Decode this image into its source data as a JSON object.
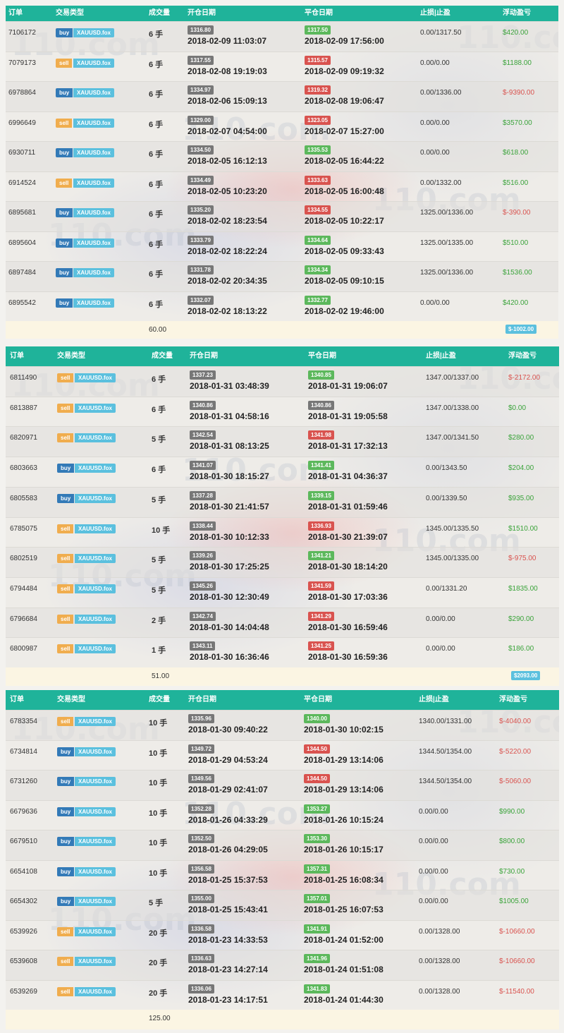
{
  "tables": [
    {
      "headers": {
        "order": "订单",
        "type": "交易类型",
        "volume": "成交量",
        "open": "开仓日期",
        "close": "平仓日期",
        "sltp": "止损|止盈",
        "pnl": "浮动盈亏"
      },
      "rows": [
        {
          "order": "7106172",
          "side": "buy",
          "symbol": "XAUUSD.fox",
          "lots": "6 手",
          "open_price": "1316.80",
          "open_time": "2018-02-09 11:03:07",
          "close_price": "1317.50",
          "close_color": "green",
          "close_time": "2018-02-09 17:56:00",
          "sltp": "0.00/1317.50",
          "pnl": "$420.00",
          "pnl_sign": "pos"
        },
        {
          "order": "7079173",
          "side": "sell",
          "symbol": "XAUUSD.fox",
          "lots": "6 手",
          "open_price": "1317.55",
          "open_time": "2018-02-08 19:19:03",
          "close_price": "1315.57",
          "close_color": "red",
          "close_time": "2018-02-09 09:19:32",
          "sltp": "0.00/0.00",
          "pnl": "$1188.00",
          "pnl_sign": "pos"
        },
        {
          "order": "6978864",
          "side": "buy",
          "symbol": "XAUUSD.fox",
          "lots": "6 手",
          "open_price": "1334.97",
          "open_time": "2018-02-06 15:09:13",
          "close_price": "1319.32",
          "close_color": "red",
          "close_time": "2018-02-08 19:06:47",
          "sltp": "0.00/1336.00",
          "pnl": "$-9390.00",
          "pnl_sign": "neg"
        },
        {
          "order": "6996649",
          "side": "sell",
          "symbol": "XAUUSD.fox",
          "lots": "6 手",
          "open_price": "1329.00",
          "open_time": "2018-02-07 04:54:00",
          "close_price": "1323.05",
          "close_color": "red",
          "close_time": "2018-02-07 15:27:00",
          "sltp": "0.00/0.00",
          "pnl": "$3570.00",
          "pnl_sign": "pos"
        },
        {
          "order": "6930711",
          "side": "buy",
          "symbol": "XAUUSD.fox",
          "lots": "6 手",
          "open_price": "1334.50",
          "open_time": "2018-02-05 16:12:13",
          "close_price": "1335.53",
          "close_color": "green",
          "close_time": "2018-02-05 16:44:22",
          "sltp": "0.00/0.00",
          "pnl": "$618.00",
          "pnl_sign": "pos"
        },
        {
          "order": "6914524",
          "side": "sell",
          "symbol": "XAUUSD.fox",
          "lots": "6 手",
          "open_price": "1334.49",
          "open_time": "2018-02-05 10:23:20",
          "close_price": "1333.63",
          "close_color": "red",
          "close_time": "2018-02-05 16:00:48",
          "sltp": "0.00/1332.00",
          "pnl": "$516.00",
          "pnl_sign": "pos"
        },
        {
          "order": "6895681",
          "side": "buy",
          "symbol": "XAUUSD.fox",
          "lots": "6 手",
          "open_price": "1335.20",
          "open_time": "2018-02-02 18:23:54",
          "close_price": "1334.55",
          "close_color": "red",
          "close_time": "2018-02-05 10:22:17",
          "sltp": "1325.00/1336.00",
          "pnl": "$-390.00",
          "pnl_sign": "neg"
        },
        {
          "order": "6895604",
          "side": "buy",
          "symbol": "XAUUSD.fox",
          "lots": "6 手",
          "open_price": "1333.79",
          "open_time": "2018-02-02 18:22:24",
          "close_price": "1334.64",
          "close_color": "green",
          "close_time": "2018-02-05 09:33:43",
          "sltp": "1325.00/1335.00",
          "pnl": "$510.00",
          "pnl_sign": "pos"
        },
        {
          "order": "6897484",
          "side": "buy",
          "symbol": "XAUUSD.fox",
          "lots": "6 手",
          "open_price": "1331.78",
          "open_time": "2018-02-02 20:34:35",
          "close_price": "1334.34",
          "close_color": "green",
          "close_time": "2018-02-05 09:10:15",
          "sltp": "1325.00/1336.00",
          "pnl": "$1536.00",
          "pnl_sign": "pos"
        },
        {
          "order": "6895542",
          "side": "buy",
          "symbol": "XAUUSD.fox",
          "lots": "6 手",
          "open_price": "1332.07",
          "open_time": "2018-02-02 18:13:22",
          "close_price": "1332.77",
          "close_color": "green",
          "close_time": "2018-02-02 19:46:00",
          "sltp": "0.00/0.00",
          "pnl": "$420.00",
          "pnl_sign": "pos"
        }
      ],
      "total_volume": "60.00",
      "total_pnl": "$-1002.00"
    },
    {
      "headers": {
        "order": "订单",
        "type": "交易类型",
        "volume": "成交量",
        "open": "开仓日期",
        "close": "平仓日期",
        "sltp": "止损|止盈",
        "pnl": "浮动盈亏"
      },
      "rows": [
        {
          "order": "6811490",
          "side": "sell",
          "symbol": "XAUUSD.fox",
          "lots": "6 手",
          "open_price": "1337.23",
          "open_time": "2018-01-31 03:48:39",
          "close_price": "1340.85",
          "close_color": "green",
          "close_time": "2018-01-31 19:06:07",
          "sltp": "1347.00/1337.00",
          "pnl": "$-2172.00",
          "pnl_sign": "neg"
        },
        {
          "order": "6813887",
          "side": "sell",
          "symbol": "XAUUSD.fox",
          "lots": "6 手",
          "open_price": "1340.86",
          "open_time": "2018-01-31 04:58:16",
          "close_price": "1340.86",
          "close_color": "grey",
          "close_time": "2018-01-31 19:05:58",
          "sltp": "1347.00/1338.00",
          "pnl": "$0.00",
          "pnl_sign": "pos"
        },
        {
          "order": "6820971",
          "side": "sell",
          "symbol": "XAUUSD.fox",
          "lots": "5 手",
          "open_price": "1342.54",
          "open_time": "2018-01-31 08:13:25",
          "close_price": "1341.98",
          "close_color": "red",
          "close_time": "2018-01-31 17:32:13",
          "sltp": "1347.00/1341.50",
          "pnl": "$280.00",
          "pnl_sign": "pos"
        },
        {
          "order": "6803663",
          "side": "buy",
          "symbol": "XAUUSD.fox",
          "lots": "6 手",
          "open_price": "1341.07",
          "open_time": "2018-01-30 18:15:27",
          "close_price": "1341.41",
          "close_color": "green",
          "close_time": "2018-01-31 04:36:37",
          "sltp": "0.00/1343.50",
          "pnl": "$204.00",
          "pnl_sign": "pos"
        },
        {
          "order": "6805583",
          "side": "buy",
          "symbol": "XAUUSD.fox",
          "lots": "5 手",
          "open_price": "1337.28",
          "open_time": "2018-01-30 21:41:57",
          "close_price": "1339.15",
          "close_color": "green",
          "close_time": "2018-01-31 01:59:46",
          "sltp": "0.00/1339.50",
          "pnl": "$935.00",
          "pnl_sign": "pos"
        },
        {
          "order": "6785075",
          "side": "sell",
          "symbol": "XAUUSD.fox",
          "lots": "10 手",
          "open_price": "1338.44",
          "open_time": "2018-01-30 10:12:33",
          "close_price": "1336.93",
          "close_color": "red",
          "close_time": "2018-01-30 21:39:07",
          "sltp": "1345.00/1335.50",
          "pnl": "$1510.00",
          "pnl_sign": "pos"
        },
        {
          "order": "6802519",
          "side": "sell",
          "symbol": "XAUUSD.fox",
          "lots": "5 手",
          "open_price": "1339.26",
          "open_time": "2018-01-30 17:25:25",
          "close_price": "1341.21",
          "close_color": "green",
          "close_time": "2018-01-30 18:14:20",
          "sltp": "1345.00/1335.00",
          "pnl": "$-975.00",
          "pnl_sign": "neg"
        },
        {
          "order": "6794484",
          "side": "sell",
          "symbol": "XAUUSD.fox",
          "lots": "5 手",
          "open_price": "1345.26",
          "open_time": "2018-01-30 12:30:49",
          "close_price": "1341.59",
          "close_color": "red",
          "close_time": "2018-01-30 17:03:36",
          "sltp": "0.00/1331.20",
          "pnl": "$1835.00",
          "pnl_sign": "pos"
        },
        {
          "order": "6796684",
          "side": "sell",
          "symbol": "XAUUSD.fox",
          "lots": "2 手",
          "open_price": "1342.74",
          "open_time": "2018-01-30 14:04:48",
          "close_price": "1341.29",
          "close_color": "red",
          "close_time": "2018-01-30 16:59:46",
          "sltp": "0.00/0.00",
          "pnl": "$290.00",
          "pnl_sign": "pos"
        },
        {
          "order": "6800987",
          "side": "sell",
          "symbol": "XAUUSD.fox",
          "lots": "1 手",
          "open_price": "1343.11",
          "open_time": "2018-01-30 16:36:46",
          "close_price": "1341.25",
          "close_color": "red",
          "close_time": "2018-01-30 16:59:36",
          "sltp": "0.00/0.00",
          "pnl": "$186.00",
          "pnl_sign": "pos"
        }
      ],
      "total_volume": "51.00",
      "total_pnl": "$2093.00"
    },
    {
      "headers": {
        "order": "订单",
        "type": "交易类型",
        "volume": "成交量",
        "open": "开仓日期",
        "close": "平仓日期",
        "sltp": "止损|止盈",
        "pnl": "浮动盈亏"
      },
      "rows": [
        {
          "order": "6783354",
          "side": "sell",
          "symbol": "XAUUSD.fox",
          "lots": "10 手",
          "open_price": "1335.96",
          "open_time": "2018-01-30 09:40:22",
          "close_price": "1340.00",
          "close_color": "green",
          "close_time": "2018-01-30 10:02:15",
          "sltp": "1340.00/1331.00",
          "pnl": "$-4040.00",
          "pnl_sign": "neg"
        },
        {
          "order": "6734814",
          "side": "buy",
          "symbol": "XAUUSD.fox",
          "lots": "10 手",
          "open_price": "1349.72",
          "open_time": "2018-01-29 04:53:24",
          "close_price": "1344.50",
          "close_color": "red",
          "close_time": "2018-01-29 13:14:06",
          "sltp": "1344.50/1354.00",
          "pnl": "$-5220.00",
          "pnl_sign": "neg"
        },
        {
          "order": "6731260",
          "side": "buy",
          "symbol": "XAUUSD.fox",
          "lots": "10 手",
          "open_price": "1349.56",
          "open_time": "2018-01-29 02:41:07",
          "close_price": "1344.50",
          "close_color": "red",
          "close_time": "2018-01-29 13:14:06",
          "sltp": "1344.50/1354.00",
          "pnl": "$-5060.00",
          "pnl_sign": "neg"
        },
        {
          "order": "6679636",
          "side": "buy",
          "symbol": "XAUUSD.fox",
          "lots": "10 手",
          "open_price": "1352.28",
          "open_time": "2018-01-26 04:33:29",
          "close_price": "1353.27",
          "close_color": "green",
          "close_time": "2018-01-26 10:15:24",
          "sltp": "0.00/0.00",
          "pnl": "$990.00",
          "pnl_sign": "pos"
        },
        {
          "order": "6679510",
          "side": "buy",
          "symbol": "XAUUSD.fox",
          "lots": "10 手",
          "open_price": "1352.50",
          "open_time": "2018-01-26 04:29:05",
          "close_price": "1353.30",
          "close_color": "green",
          "close_time": "2018-01-26 10:15:17",
          "sltp": "0.00/0.00",
          "pnl": "$800.00",
          "pnl_sign": "pos"
        },
        {
          "order": "6654108",
          "side": "buy",
          "symbol": "XAUUSD.fox",
          "lots": "10 手",
          "open_price": "1356.58",
          "open_time": "2018-01-25 15:37:53",
          "close_price": "1357.31",
          "close_color": "green",
          "close_time": "2018-01-25 16:08:34",
          "sltp": "0.00/0.00",
          "pnl": "$730.00",
          "pnl_sign": "pos"
        },
        {
          "order": "6654302",
          "side": "buy",
          "symbol": "XAUUSD.fox",
          "lots": "5 手",
          "open_price": "1355.00",
          "open_time": "2018-01-25 15:43:41",
          "close_price": "1357.01",
          "close_color": "green",
          "close_time": "2018-01-25 16:07:53",
          "sltp": "0.00/0.00",
          "pnl": "$1005.00",
          "pnl_sign": "pos"
        },
        {
          "order": "6539926",
          "side": "sell",
          "symbol": "XAUUSD.fox",
          "lots": "20 手",
          "open_price": "1336.58",
          "open_time": "2018-01-23 14:33:53",
          "close_price": "1341.91",
          "close_color": "green",
          "close_time": "2018-01-24 01:52:00",
          "sltp": "0.00/1328.00",
          "pnl": "$-10660.00",
          "pnl_sign": "neg"
        },
        {
          "order": "6539608",
          "side": "sell",
          "symbol": "XAUUSD.fox",
          "lots": "20 手",
          "open_price": "1336.63",
          "open_time": "2018-01-23 14:27:14",
          "close_price": "1341.96",
          "close_color": "green",
          "close_time": "2018-01-24 01:51:08",
          "sltp": "0.00/1328.00",
          "pnl": "$-10660.00",
          "pnl_sign": "neg"
        },
        {
          "order": "6539269",
          "side": "sell",
          "symbol": "XAUUSD.fox",
          "lots": "20 手",
          "open_price": "1336.06",
          "open_time": "2018-01-23 14:17:51",
          "close_price": "1341.83",
          "close_color": "green",
          "close_time": "2018-01-24 01:44:30",
          "sltp": "0.00/1328.00",
          "pnl": "$-11540.00",
          "pnl_sign": "neg"
        }
      ],
      "total_volume": "125.00",
      "total_pnl": ""
    }
  ],
  "watermark": "110.com"
}
